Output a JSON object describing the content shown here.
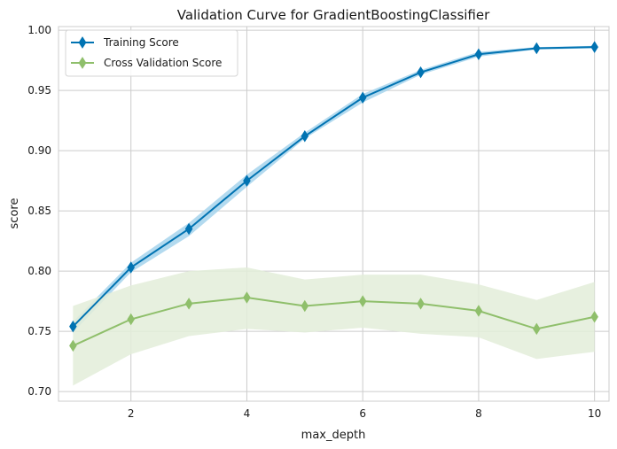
{
  "chart_data": {
    "type": "line",
    "title": "Validation Curve for GradientBoostingClassifier",
    "xlabel": "max_depth",
    "ylabel": "score",
    "xlim": [
      0.75,
      10.25
    ],
    "ylim": [
      0.692,
      1.003
    ],
    "xticks": [
      2,
      4,
      6,
      8,
      10
    ],
    "yticks": [
      0.7,
      0.75,
      0.8,
      0.85,
      0.9,
      0.95,
      1.0
    ],
    "ytick_labels": [
      "0.70",
      "0.75",
      "0.80",
      "0.85",
      "0.90",
      "0.95",
      "1.00"
    ],
    "grid": true,
    "legend_position": "top-left",
    "x": [
      1,
      2,
      3,
      4,
      5,
      6,
      7,
      8,
      9,
      10
    ],
    "series": [
      {
        "name": "Training Score",
        "color": "#0173b2",
        "band_color": "#a6d4ec",
        "marker": "thin-diamond",
        "values": [
          0.754,
          0.803,
          0.835,
          0.875,
          0.912,
          0.944,
          0.965,
          0.98,
          0.985,
          0.986
        ],
        "lower": [
          0.749,
          0.799,
          0.829,
          0.87,
          0.91,
          0.94,
          0.963,
          0.978,
          0.984,
          0.985
        ],
        "upper": [
          0.758,
          0.807,
          0.84,
          0.88,
          0.915,
          0.947,
          0.967,
          0.982,
          0.986,
          0.987
        ]
      },
      {
        "name": "Cross Validation Score",
        "color": "#8fbf6b",
        "band_color": "#e3edd9",
        "marker": "thin-diamond",
        "values": [
          0.738,
          0.76,
          0.773,
          0.778,
          0.771,
          0.775,
          0.773,
          0.767,
          0.752,
          0.762
        ],
        "lower": [
          0.705,
          0.731,
          0.746,
          0.752,
          0.749,
          0.753,
          0.748,
          0.745,
          0.727,
          0.733
        ],
        "upper": [
          0.771,
          0.788,
          0.8,
          0.803,
          0.793,
          0.797,
          0.797,
          0.789,
          0.776,
          0.791
        ]
      }
    ]
  }
}
